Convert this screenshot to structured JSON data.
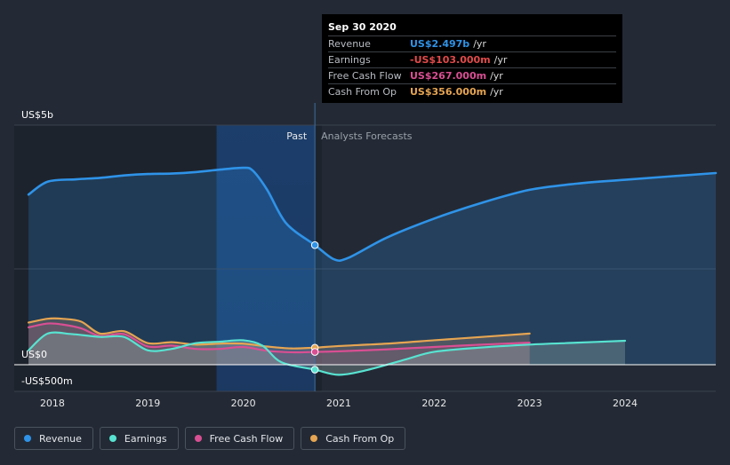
{
  "colors": {
    "revenue": "#2f93e8",
    "earnings": "#58e3d1",
    "fcf": "#d94f93",
    "cfo": "#e6a552",
    "background": "#232a35"
  },
  "tooltip": {
    "date": "Sep 30 2020",
    "rows": [
      {
        "label": "Revenue",
        "value": "US$2.497b",
        "unit": "/yr",
        "color": "#2f93e8"
      },
      {
        "label": "Earnings",
        "value": "-US$103.000m",
        "unit": "/yr",
        "color": "#e24a4a"
      },
      {
        "label": "Free Cash Flow",
        "value": "US$267.000m",
        "unit": "/yr",
        "color": "#d94f93"
      },
      {
        "label": "Cash From Op",
        "value": "US$356.000m",
        "unit": "/yr",
        "color": "#e6a552"
      }
    ]
  },
  "legend": [
    {
      "label": "Revenue",
      "icon": "revenue-dot-icon",
      "color": "#2f93e8"
    },
    {
      "label": "Earnings",
      "icon": "earnings-dot-icon",
      "color": "#58e3d1"
    },
    {
      "label": "Free Cash Flow",
      "icon": "fcf-dot-icon",
      "color": "#d94f93"
    },
    {
      "label": "Cash From Op",
      "icon": "cfo-dot-icon",
      "color": "#e6a552"
    }
  ],
  "chart_data": {
    "type": "line",
    "xlabel": "",
    "ylabel": "",
    "xlim": [
      2017.6,
      2024.95
    ],
    "ylim": [
      -500,
      5000
    ],
    "x_ticks": [
      2018,
      2019,
      2020,
      2021,
      2022,
      2023,
      2024
    ],
    "x_tick_labels": [
      "2018",
      "2019",
      "2020",
      "2021",
      "2022",
      "2023",
      "2024"
    ],
    "y_labels": [
      {
        "value": 5000,
        "label": "US$5b"
      },
      {
        "value": 0,
        "label": "US$0"
      },
      {
        "value": -500,
        "label": "-US$500m"
      }
    ],
    "gridlines": [
      5000,
      2000,
      0
    ],
    "past_label": "Past",
    "forecast_label": "Analysts Forecasts",
    "divider_x": 2020.75,
    "highlight_range": [
      2019.72,
      2020.75
    ],
    "cursor_x": 2020.75,
    "series": [
      {
        "name": "Revenue",
        "key": "revenue",
        "fill": true,
        "points": [
          [
            2017.75,
            3550
          ],
          [
            2017.95,
            3820
          ],
          [
            2018.25,
            3870
          ],
          [
            2018.5,
            3900
          ],
          [
            2018.75,
            3950
          ],
          [
            2019.0,
            3980
          ],
          [
            2019.25,
            3990
          ],
          [
            2019.5,
            4020
          ],
          [
            2019.75,
            4070
          ],
          [
            2020.0,
            4110
          ],
          [
            2020.1,
            4050
          ],
          [
            2020.25,
            3650
          ],
          [
            2020.45,
            2950
          ],
          [
            2020.75,
            2497
          ],
          [
            2020.95,
            2200
          ],
          [
            2021.1,
            2230
          ],
          [
            2021.5,
            2650
          ],
          [
            2022.0,
            3050
          ],
          [
            2022.5,
            3380
          ],
          [
            2023.0,
            3650
          ],
          [
            2023.5,
            3780
          ],
          [
            2024.0,
            3860
          ],
          [
            2024.95,
            4000
          ]
        ]
      },
      {
        "name": "Cash From Op",
        "key": "cfo",
        "fill": true,
        "fill_end": 2023.0,
        "points": [
          [
            2017.75,
            880
          ],
          [
            2017.95,
            960
          ],
          [
            2018.1,
            960
          ],
          [
            2018.3,
            900
          ],
          [
            2018.5,
            650
          ],
          [
            2018.75,
            700
          ],
          [
            2019.0,
            450
          ],
          [
            2019.25,
            470
          ],
          [
            2019.5,
            420
          ],
          [
            2019.75,
            440
          ],
          [
            2020.0,
            440
          ],
          [
            2020.25,
            380
          ],
          [
            2020.5,
            340
          ],
          [
            2020.75,
            356
          ],
          [
            2021.0,
            390
          ],
          [
            2021.5,
            440
          ],
          [
            2022.0,
            510
          ],
          [
            2022.5,
            580
          ],
          [
            2023.0,
            650
          ]
        ]
      },
      {
        "name": "Free Cash Flow",
        "key": "fcf",
        "fill": true,
        "fill_end": 2023.0,
        "points": [
          [
            2017.75,
            780
          ],
          [
            2017.95,
            860
          ],
          [
            2018.1,
            840
          ],
          [
            2018.3,
            760
          ],
          [
            2018.5,
            600
          ],
          [
            2018.75,
            640
          ],
          [
            2019.0,
            380
          ],
          [
            2019.25,
            400
          ],
          [
            2019.5,
            330
          ],
          [
            2019.75,
            330
          ],
          [
            2020.0,
            370
          ],
          [
            2020.25,
            290
          ],
          [
            2020.5,
            260
          ],
          [
            2020.75,
            267
          ],
          [
            2021.0,
            280
          ],
          [
            2021.5,
            320
          ],
          [
            2022.0,
            370
          ],
          [
            2022.5,
            420
          ],
          [
            2023.0,
            460
          ]
        ]
      },
      {
        "name": "Earnings",
        "key": "earnings",
        "fill": true,
        "fill_end": 2024.0,
        "points": [
          [
            2017.75,
            300
          ],
          [
            2017.95,
            650
          ],
          [
            2018.2,
            640
          ],
          [
            2018.5,
            580
          ],
          [
            2018.75,
            580
          ],
          [
            2019.0,
            300
          ],
          [
            2019.25,
            330
          ],
          [
            2019.5,
            450
          ],
          [
            2019.75,
            480
          ],
          [
            2020.0,
            510
          ],
          [
            2020.2,
            400
          ],
          [
            2020.4,
            50
          ],
          [
            2020.75,
            -103
          ],
          [
            2021.0,
            -210
          ],
          [
            2021.3,
            -110
          ],
          [
            2021.7,
            110
          ],
          [
            2022.0,
            270
          ],
          [
            2022.5,
            360
          ],
          [
            2023.0,
            420
          ],
          [
            2023.5,
            460
          ],
          [
            2024.0,
            500
          ]
        ]
      }
    ]
  }
}
